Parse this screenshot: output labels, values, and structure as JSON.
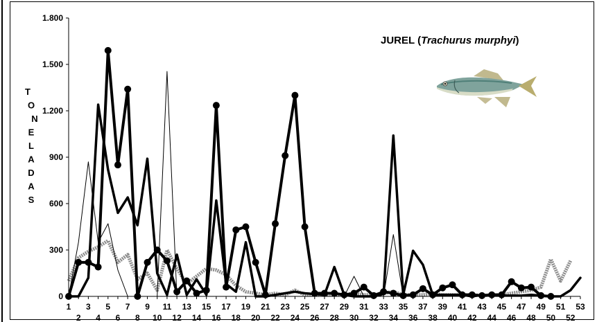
{
  "chart_data": {
    "type": "line",
    "title_parts": [
      "JUREL (",
      "Trachurus  murphyi",
      ")"
    ],
    "ylabel_letters": [
      "T",
      "O",
      "N",
      "E",
      "L",
      "A",
      "D",
      "A",
      "S"
    ],
    "ylabel": "TONELADAS",
    "xlabel": "",
    "ylim": [
      0,
      1800
    ],
    "yticks": [
      0,
      300,
      600,
      900,
      1200,
      1500,
      1800
    ],
    "ytick_labels": [
      "0",
      "300",
      "600",
      "900",
      "1.200",
      "1.500",
      "1.800"
    ],
    "xlim": [
      1,
      53
    ],
    "xtick_labels": [
      "1",
      "3",
      "5",
      "7",
      "9",
      "11",
      "13",
      "15",
      "17",
      "19",
      "21",
      "23",
      "25",
      "27",
      "29",
      "31",
      "33",
      "35",
      "37",
      "39",
      "41",
      "43",
      "45",
      "47",
      "49",
      "51",
      "53"
    ],
    "row2_tick_labels": [
      "2",
      "4",
      "6",
      "8",
      "10",
      "12",
      "14",
      "16",
      "18",
      "20",
      "22",
      "24",
      "26",
      "28",
      "30",
      "32",
      "34",
      "36",
      "38",
      "40",
      "42",
      "44",
      "46",
      "48",
      "50",
      "52"
    ],
    "grid": false,
    "series": [
      {
        "style": "thick-markers",
        "color": "#000000",
        "x": [
          1,
          2,
          3,
          4,
          5,
          6,
          7,
          8,
          9,
          10,
          11,
          12,
          13,
          14,
          15,
          16,
          17,
          18,
          19,
          20,
          21,
          22,
          23,
          24,
          25,
          26,
          27,
          28,
          29,
          30,
          31,
          32,
          33,
          34,
          35,
          36,
          37,
          38,
          39,
          40,
          41,
          42,
          43,
          44,
          45,
          46,
          47,
          48,
          49,
          50
        ],
        "values": [
          0,
          220,
          220,
          190,
          1590,
          850,
          1340,
          0,
          220,
          300,
          230,
          30,
          100,
          20,
          40,
          1235,
          60,
          430,
          450,
          220,
          10,
          470,
          910,
          1300,
          450,
          20,
          20,
          20,
          10,
          20,
          60,
          5,
          30,
          20,
          5,
          10,
          50,
          10,
          55,
          75,
          10,
          10,
          5,
          10,
          10,
          95,
          55,
          60,
          5,
          0
        ]
      },
      {
        "style": "thick",
        "color": "#000000",
        "x": [
          1,
          2,
          3,
          4,
          5,
          6,
          7,
          8,
          9,
          10,
          11,
          12,
          13,
          14,
          15,
          16,
          17,
          18,
          19,
          20,
          21,
          22,
          23,
          24,
          25,
          26,
          27,
          28,
          29,
          30,
          31,
          32,
          33,
          34,
          35,
          36,
          37,
          38,
          39,
          40,
          41,
          42,
          43,
          44,
          45,
          46,
          47,
          48,
          49,
          50,
          51,
          52,
          53
        ],
        "values": [
          0,
          0,
          120,
          1240,
          820,
          540,
          640,
          460,
          890,
          150,
          10,
          270,
          10,
          110,
          10,
          620,
          80,
          30,
          350,
          0,
          0,
          10,
          20,
          30,
          20,
          15,
          10,
          190,
          10,
          0,
          0,
          0,
          15,
          1040,
          10,
          295,
          205,
          10,
          10,
          10,
          10,
          0,
          10,
          5,
          5,
          5,
          5,
          10,
          5,
          0,
          0,
          40,
          120
        ]
      },
      {
        "style": "thin",
        "color": "#000000",
        "x": [
          1,
          2,
          3,
          4,
          5,
          6,
          7,
          8,
          9,
          10,
          11,
          12,
          13,
          14,
          15,
          16,
          17,
          18,
          19,
          20,
          21,
          22,
          23,
          24,
          25,
          26,
          27,
          28,
          29,
          30,
          31,
          32,
          33,
          34,
          35,
          36,
          37,
          38,
          39,
          40,
          41,
          42,
          43,
          44,
          45,
          46,
          47,
          48,
          49,
          50
        ],
        "values": [
          0,
          350,
          870,
          350,
          470,
          170,
          0,
          0,
          0,
          0,
          1455,
          0,
          0,
          0,
          0,
          0,
          0,
          0,
          0,
          0,
          0,
          0,
          0,
          0,
          0,
          0,
          0,
          0,
          0,
          130,
          0,
          0,
          0,
          400,
          0,
          0,
          0,
          0,
          0,
          0,
          0,
          0,
          0,
          0,
          0,
          0,
          0,
          0,
          0,
          0
        ]
      },
      {
        "style": "gray-dotted",
        "color": "#8c8c8c",
        "x": [
          1,
          2,
          3,
          4,
          5,
          6,
          7,
          8,
          9,
          10,
          11,
          12,
          13,
          14,
          15,
          16,
          17,
          18,
          19,
          20,
          21,
          22,
          23,
          24,
          25,
          26,
          27,
          28,
          29,
          30,
          31,
          32,
          33,
          34,
          35,
          36,
          37,
          38,
          39,
          40,
          41,
          42,
          43,
          44,
          45,
          46,
          47,
          48,
          49,
          50,
          51,
          52
        ],
        "values": [
          100,
          250,
          290,
          320,
          360,
          220,
          270,
          110,
          150,
          40,
          300,
          180,
          80,
          130,
          180,
          170,
          140,
          70,
          30,
          20,
          10,
          20,
          10,
          40,
          10,
          15,
          10,
          15,
          10,
          20,
          10,
          10,
          20,
          30,
          10,
          10,
          10,
          20,
          10,
          10,
          10,
          10,
          5,
          10,
          10,
          20,
          30,
          40,
          60,
          240,
          100,
          230
        ]
      }
    ]
  }
}
